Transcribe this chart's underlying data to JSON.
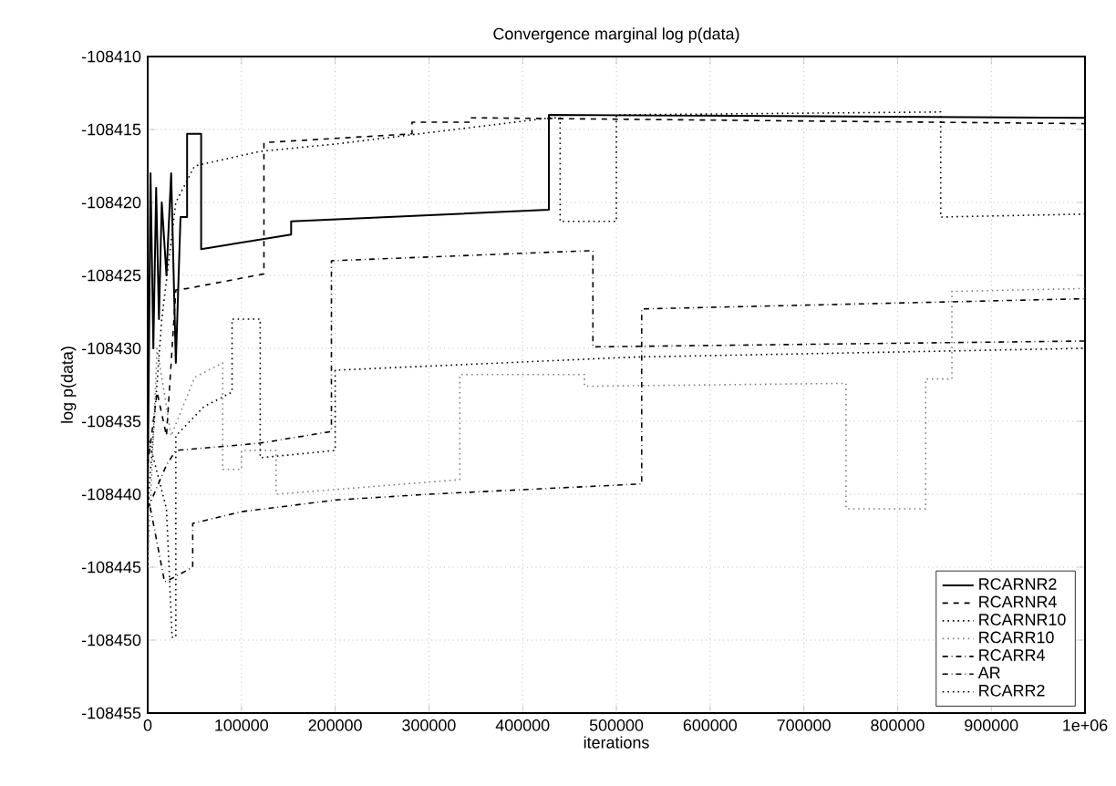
{
  "chart_data": {
    "type": "line",
    "title": "Convergence marginal log p(data)",
    "xlabel": "iterations",
    "ylabel": "log p(data)",
    "xlim": [
      0,
      1000000
    ],
    "ylim": [
      -108455,
      -108410
    ],
    "xticks": [
      0,
      100000,
      200000,
      300000,
      400000,
      500000,
      600000,
      700000,
      800000,
      900000,
      {
        "value": 1000000,
        "label": "1e+06"
      }
    ],
    "yticks": [
      -108455,
      -108450,
      -108445,
      -108440,
      -108435,
      -108430,
      -108425,
      -108420,
      -108415,
      -108410
    ],
    "grid": true,
    "legend": "bottom right",
    "series": [
      {
        "name": "RCARNR2",
        "color": "#000000",
        "line_style": "solid",
        "x": [
          0,
          3000,
          6000,
          9000,
          12000,
          15000,
          20000,
          25000,
          30000,
          35000,
          42000,
          42000,
          57000,
          57000,
          153000,
          153000,
          428000,
          428000,
          1000000
        ],
        "values": [
          -108440,
          -108418,
          -108430,
          -108419,
          -108428,
          -108420,
          -108425,
          -108418,
          -108431,
          -108421,
          -108421,
          -108415.3,
          -108415.3,
          -108423.2,
          -108422.2,
          -108421.3,
          -108420.5,
          -108414,
          -108414.2
        ]
      },
      {
        "name": "RCARNR4",
        "color": "#000000",
        "line_style": "dashed",
        "x": [
          0,
          10000,
          20000,
          30000,
          42000,
          124000,
          124000,
          282000,
          282000,
          344000,
          344000,
          1000000
        ],
        "values": [
          -108438,
          -108433,
          -108436,
          -108426,
          -108425.9,
          -108424.9,
          -108415.9,
          -108415.3,
          -108414.5,
          -108414.5,
          -108414.2,
          -108414.6
        ]
      },
      {
        "name": "RCARNR10",
        "color": "#000000",
        "line_style": "dotted",
        "x": [
          0,
          15000,
          30000,
          50000,
          120000,
          200000,
          430000,
          440000,
          440000,
          500000,
          500000,
          846000,
          846000,
          1000000
        ],
        "values": [
          -108441,
          -108428,
          -108420,
          -108417.5,
          -108416.5,
          -108416,
          -108414.2,
          -108414.2,
          -108421.3,
          -108421.3,
          -108414,
          -108413.8,
          -108421,
          -108420.8
        ]
      },
      {
        "name": "RCARR10",
        "color": "#808080",
        "line_style": "dotted",
        "x": [
          0,
          10000,
          25000,
          50000,
          80000,
          80000,
          100000,
          100000,
          120000,
          120000,
          137000,
          137000,
          333000,
          333000,
          466000,
          466000,
          745000,
          745000,
          830000,
          830000,
          858000,
          858000,
          1000000
        ],
        "values": [
          -108445,
          -108430,
          -108436,
          -108432,
          -108431,
          -108438.3,
          -108438.3,
          -108437,
          -108437,
          -108437,
          -108437,
          -108440,
          -108439,
          -108431.8,
          -108431.8,
          -108432.6,
          -108432.4,
          -108441,
          -108441,
          -108432.1,
          -108432.1,
          -108426.1,
          -108425.9
        ]
      },
      {
        "name": "RCARR4",
        "color": "#000000",
        "line_style": "dashdot",
        "x": [
          0,
          20000,
          30000,
          120000,
          196000,
          196000,
          475000,
          475000,
          1000000
        ],
        "values": [
          -108441,
          -108438,
          -108437,
          -108436.5,
          -108435.7,
          -108424,
          -108423.3,
          -108429.9,
          -108429.5
        ]
      },
      {
        "name": "AR",
        "color": "#000000",
        "line_style": "dashdot",
        "x": [
          0,
          18000,
          25000,
          48000,
          48000,
          100000,
          200000,
          300000,
          525000,
          527000,
          527000,
          1000000
        ],
        "values": [
          -108440,
          -108446,
          -108445.8,
          -108445,
          -108442,
          -108441.2,
          -108440.4,
          -108440,
          -108439.3,
          -108439.3,
          -108427.3,
          -108426.6
        ]
      },
      {
        "name": "RCARR2",
        "color": "#000000",
        "line_style": "dotted",
        "x": [
          0,
          20000,
          26000,
          30000,
          30000,
          60000,
          90000,
          90000,
          120000,
          120000,
          200000,
          200000,
          520000,
          1000000
        ],
        "values": [
          -108436,
          -108441,
          -108449.8,
          -108449.8,
          -108436,
          -108434,
          -108433,
          -108428,
          -108428,
          -108437.5,
          -108437,
          -108431.5,
          -108430.6,
          -108430
        ]
      }
    ]
  }
}
